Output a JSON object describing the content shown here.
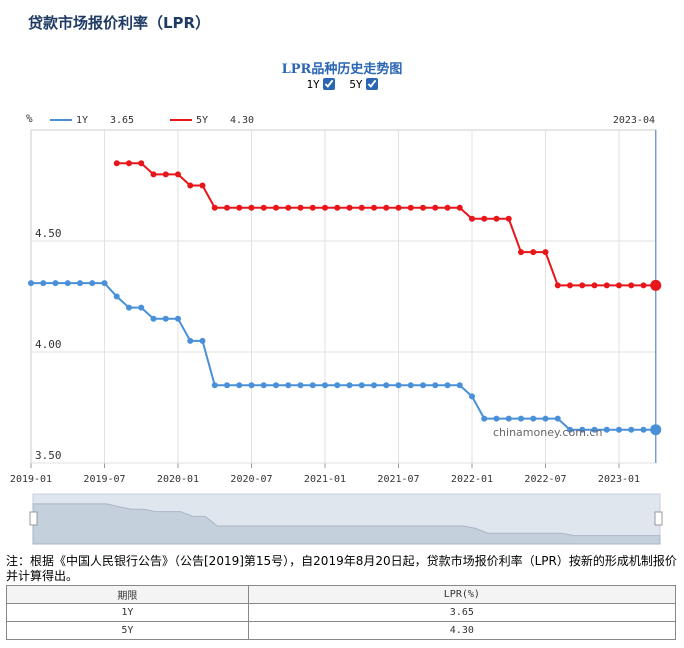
{
  "page": {
    "title": "贷款市场报价利率（LPR）"
  },
  "chart_title": "LPR品种历史走势图",
  "toggles": [
    {
      "label": "1Y",
      "checked": true
    },
    {
      "label": "5Y",
      "checked": true
    }
  ],
  "watermark": "chinamoney.com.cn",
  "note": "注：根据《中国人民银行公告》（公告[2019]第15号），自2019年8月20日起，贷款市场报价利率（LPR）按新的形成机制报价并计算得出。",
  "table": {
    "headers": [
      "期限",
      "LPR(%)"
    ],
    "rows": [
      [
        "1Y",
        "3.65"
      ],
      [
        "5Y",
        "4.30"
      ]
    ]
  },
  "chart_data": {
    "type": "line",
    "ylabel": "%",
    "ylim": [
      3.5,
      5.0
    ],
    "yticks": [
      "4.50",
      "4.00",
      "3.50"
    ],
    "xticks": [
      "2019-01",
      "2019-07",
      "2020-01",
      "2020-07",
      "2021-01",
      "2021-07",
      "2022-01",
      "2022-07",
      "2023-01"
    ],
    "current_label": "2023-04",
    "colors": {
      "1Y": "#4a90d9",
      "5Y": "#e8161b"
    },
    "series": [
      {
        "name": "1Y",
        "latest": "3.65",
        "start": "2019-01",
        "values": [
          4.31,
          4.31,
          4.31,
          4.31,
          4.31,
          4.31,
          4.31,
          4.25,
          4.2,
          4.2,
          4.15,
          4.15,
          4.15,
          4.05,
          4.05,
          3.85,
          3.85,
          3.85,
          3.85,
          3.85,
          3.85,
          3.85,
          3.85,
          3.85,
          3.85,
          3.85,
          3.85,
          3.85,
          3.85,
          3.85,
          3.85,
          3.85,
          3.85,
          3.85,
          3.85,
          3.85,
          3.8,
          3.7,
          3.7,
          3.7,
          3.7,
          3.7,
          3.7,
          3.7,
          3.65,
          3.65,
          3.65,
          3.65,
          3.65,
          3.65,
          3.65,
          3.65
        ]
      },
      {
        "name": "5Y",
        "latest": "4.30",
        "start": "2019-08",
        "values": [
          4.85,
          4.85,
          4.85,
          4.8,
          4.8,
          4.8,
          4.75,
          4.75,
          4.65,
          4.65,
          4.65,
          4.65,
          4.65,
          4.65,
          4.65,
          4.65,
          4.65,
          4.65,
          4.65,
          4.65,
          4.65,
          4.65,
          4.65,
          4.65,
          4.65,
          4.65,
          4.65,
          4.65,
          4.65,
          4.6,
          4.6,
          4.6,
          4.6,
          4.45,
          4.45,
          4.45,
          4.3,
          4.3,
          4.3,
          4.3,
          4.3,
          4.3,
          4.3,
          4.3,
          4.3
        ]
      }
    ]
  }
}
